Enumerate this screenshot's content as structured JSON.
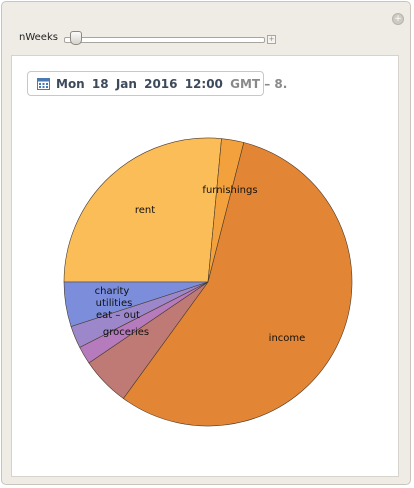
{
  "control": {
    "label": "nWeeks",
    "slider_value_fraction": 0.05
  },
  "date_display": {
    "weekday": "Mon",
    "day": "18",
    "month": "Jan",
    "year": "2016",
    "time": "12:00",
    "timezone": "GMT – 8."
  },
  "icons": {
    "calendar": "calendar-icon",
    "panel_plus": "plus-circle-icon",
    "slider_plus": "plus-square-icon"
  },
  "chart_data": {
    "type": "pie",
    "start_angle_deg": 180,
    "direction": "clockwise",
    "slices": [
      {
        "label": "rent",
        "value": 26.5,
        "color": "#fbbd58"
      },
      {
        "label": "furnishings",
        "value": 2.5,
        "color": "#f3a13c"
      },
      {
        "label": "income",
        "value": 56.0,
        "color": "#e28534"
      },
      {
        "label": "groceries",
        "value": 5.5,
        "color": "#c07a76"
      },
      {
        "label": "eat – out",
        "value": 2.0,
        "color": "#b57bbc"
      },
      {
        "label": "utilities",
        "value": 2.5,
        "color": "#9b87c9"
      },
      {
        "label": "charity",
        "value": 5.0,
        "color": "#7b8ddb"
      }
    ]
  }
}
